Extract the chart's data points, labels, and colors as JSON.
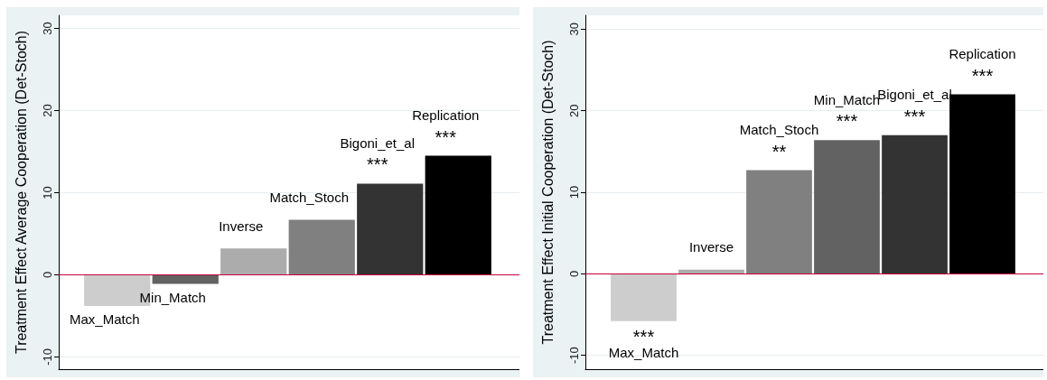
{
  "chart_data": [
    {
      "type": "bar",
      "ylabel": "Treatment Effect Average Cooperation (Det-Stoch)",
      "categories": [
        "Max_Match",
        "Min_Match",
        "Inverse",
        "Match_Stoch",
        "Bigoni_et_al",
        "Replication"
      ],
      "values": [
        -3.8,
        -1.1,
        3.2,
        6.7,
        11.1,
        14.5
      ],
      "colors": [
        "#cdcdcd",
        "#626262",
        "#acacac",
        "#808080",
        "#333333",
        "#000000"
      ],
      "ylim": [
        -11.5,
        31.6
      ],
      "yticks": [
        -10,
        0,
        10,
        20,
        30
      ],
      "grid": "y",
      "tick_labels": "y",
      "ref_lines": [
        {
          "axis": "y",
          "value": 0,
          "color": "#c8003c"
        }
      ],
      "annotations": [
        {
          "text": "***",
          "x": "Bigoni_et_al",
          "y": 11.1
        },
        {
          "text": "***",
          "x": "Replication",
          "y": 14.5
        }
      ]
    },
    {
      "type": "bar",
      "ylabel": "Treatment Effect Initial Cooperation (Det-Stoch)",
      "categories": [
        "Max_Match",
        "Inverse",
        "Match_Stoch",
        "Min_Match",
        "Bigoni_et_al",
        "Replication"
      ],
      "values": [
        -5.8,
        0.5,
        12.7,
        16.4,
        17.0,
        22.0
      ],
      "colors": [
        "#cdcdcd",
        "#acacac",
        "#808080",
        "#626262",
        "#333333",
        "#000000"
      ],
      "ylim": [
        -11.7,
        31.7
      ],
      "yticks": [
        -10,
        0,
        10,
        20,
        30
      ],
      "grid": "y",
      "tick_labels": "y",
      "ref_lines": [
        {
          "axis": "y",
          "value": 0,
          "color": "#c8003c"
        }
      ],
      "annotations": [
        {
          "text": "***",
          "x": "Max_Match",
          "y": -5.8
        },
        {
          "text": "**",
          "x": "Match_Stoch",
          "y": 12.7
        },
        {
          "text": "***",
          "x": "Min_Match",
          "y": 16.4
        },
        {
          "text": "***",
          "x": "Bigoni_et_al",
          "y": 17.0
        },
        {
          "text": "***",
          "x": "Replication",
          "y": 22.0
        }
      ]
    }
  ]
}
